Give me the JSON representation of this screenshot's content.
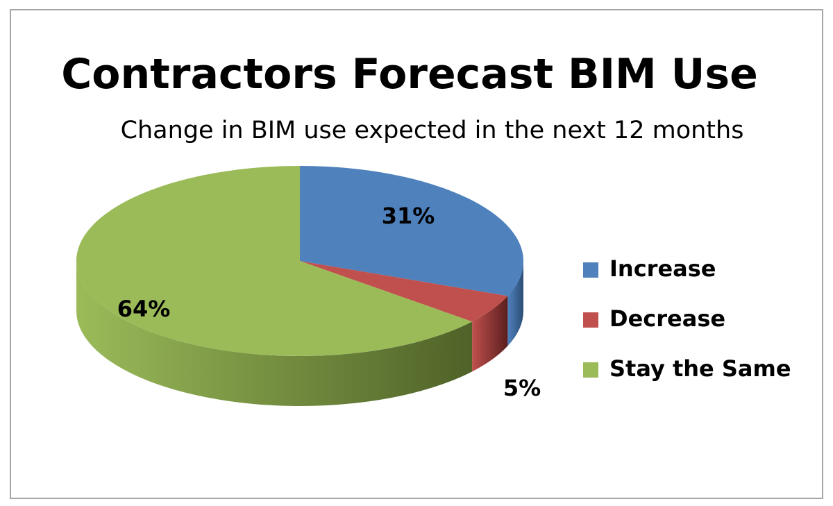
{
  "chart_data": {
    "type": "pie",
    "title": "Contractors Forecast BIM Use",
    "subtitle": "Change in BIM use expected in the next 12 months",
    "categories": [
      "Increase",
      "Decrease",
      "Stay the Same"
    ],
    "values": [
      31,
      5,
      64
    ],
    "data_labels": [
      "31%",
      "5%",
      "64%"
    ],
    "colors": [
      "#4f81bd",
      "#c0504d",
      "#9bbb59"
    ],
    "side_colors": [
      "#2c4d75",
      "#5a1f1e",
      "#4f6228"
    ],
    "style": "3d-pie",
    "legend_position": "right"
  }
}
